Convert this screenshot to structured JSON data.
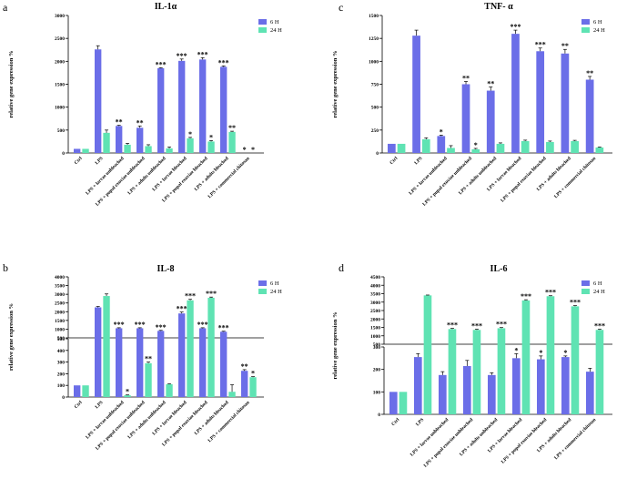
{
  "chart_data": [
    {
      "panel": "a",
      "type": "bar",
      "title": "IL-1α",
      "ylabel": "relative gene expression %",
      "ylim": [
        0,
        3000
      ],
      "yticks": [
        0,
        500,
        1000,
        1500,
        2000,
        2500,
        3000
      ],
      "categories": [
        "Ctrl",
        "LPS",
        "LPS + larvae unbleached",
        "LPS + pupal exuviae unbleached",
        "LPS + adults unbleached",
        "LPS + larvae bleached",
        "LPS + pupal exuviae bleached",
        "LPS + adults bleached",
        "LPS + commercial chitosan"
      ],
      "series": [
        {
          "name": "6 H",
          "color": "#6b6ee8",
          "values": [
            90,
            2260,
            590,
            550,
            1850,
            2010,
            2040,
            1880,
            0
          ],
          "errors": [
            0,
            80,
            15,
            40,
            10,
            40,
            40,
            20,
            0
          ],
          "stars": [
            "",
            "",
            "**",
            "**",
            "***",
            "***",
            "***",
            "***",
            "*"
          ]
        },
        {
          "name": "24 H",
          "color": "#5fe3b3",
          "values": [
            90,
            440,
            180,
            150,
            100,
            320,
            250,
            460,
            0
          ],
          "errors": [
            0,
            60,
            30,
            30,
            30,
            20,
            20,
            15,
            0
          ],
          "stars": [
            "",
            "",
            "",
            "",
            "",
            "*",
            "*",
            "**",
            "*"
          ]
        }
      ]
    },
    {
      "panel": "c",
      "type": "bar",
      "title": "TNF- α",
      "ylabel": "relative gene expression %",
      "ylim": [
        0,
        1500
      ],
      "yticks": [
        0,
        250,
        500,
        750,
        1000,
        1250,
        1500
      ],
      "categories": [
        "Ctrl",
        "LPS",
        "LPS + larvae unbleached",
        "LPS + pupal exuviae unbleached",
        "LPS + adults unbleached",
        "LPS + larvae bleached",
        "LPS + pupal exuviae bleached",
        "LPS + adults bleached",
        "LPS + commercial chitosan"
      ],
      "series": [
        {
          "name": "6 H",
          "color": "#6b6ee8",
          "values": [
            100,
            1280,
            185,
            750,
            680,
            1300,
            1110,
            1085,
            800
          ],
          "errors": [
            0,
            60,
            10,
            30,
            40,
            40,
            35,
            45,
            35
          ],
          "stars": [
            "",
            "",
            "*",
            "**",
            "**",
            "***",
            "***",
            "**",
            "**"
          ]
        },
        {
          "name": "24 H",
          "color": "#5fe3b3",
          "values": [
            100,
            150,
            55,
            40,
            100,
            130,
            120,
            130,
            60
          ],
          "errors": [
            0,
            15,
            25,
            10,
            10,
            10,
            10,
            8,
            5
          ],
          "stars": [
            "",
            "",
            "",
            "*",
            "",
            "",
            "",
            "",
            ""
          ]
        }
      ]
    },
    {
      "panel": "b",
      "type": "bar",
      "title": "IL-8",
      "ylabel": "relative gene expression %",
      "ylim": [
        0,
        4000
      ],
      "axis_break": {
        "lower_max": 500,
        "upper_min": 500
      },
      "yticks_lower": [
        0,
        100,
        200,
        300,
        400,
        500
      ],
      "yticks_upper": [
        500,
        1000,
        1500,
        2000,
        2500,
        3000,
        3500,
        4000
      ],
      "categories": [
        "Ctrl",
        "LPS",
        "LPS + larvae unbleached",
        "LPS + pupal exuviae unbleached",
        "LPS + adults unbleached",
        "LPS + larvae bleached",
        "LPS + pupal exuviae bleached",
        "LPS + adults bleached",
        "LPS + commercial chitosan"
      ],
      "series": [
        {
          "name": "6 H",
          "color": "#6b6ee8",
          "values": [
            100,
            2250,
            1050,
            1050,
            900,
            1900,
            1050,
            850,
            225
          ],
          "errors": [
            0,
            50,
            30,
            30,
            30,
            80,
            30,
            30,
            10
          ],
          "stars": [
            "",
            "",
            "***",
            "***",
            "***",
            "***",
            "***",
            "***",
            "**"
          ]
        },
        {
          "name": "24 H",
          "color": "#5fe3b3",
          "values": [
            100,
            2900,
            15,
            290,
            110,
            2650,
            2800,
            45,
            170
          ],
          "errors": [
            0,
            120,
            3,
            10,
            5,
            60,
            40,
            60,
            5
          ],
          "stars": [
            "",
            "",
            "*",
            "**",
            "",
            "***",
            "***",
            "",
            "*"
          ]
        }
      ]
    },
    {
      "panel": "d",
      "type": "bar",
      "title": "IL-6",
      "ylabel": "relative gene expression %",
      "ylim": [
        0,
        4500
      ],
      "axis_break": {
        "lower_max": 300,
        "upper_min": 500
      },
      "yticks_lower": [
        0,
        100,
        200,
        300
      ],
      "yticks_upper": [
        500,
        1000,
        1500,
        2000,
        2500,
        3000,
        3500,
        4000,
        4500
      ],
      "categories": [
        "Ctrl",
        "LPS",
        "LPS + larvae unbleached",
        "LPS + pupal exuviae unbleached",
        "LPS + adults unbleached",
        "LPS + larvae bleached",
        "LPS + pupal exuviae bleached",
        "LPS + adults bleached",
        "LPS + commercial chitosan"
      ],
      "series": [
        {
          "name": "6 H",
          "color": "#6b6ee8",
          "values": [
            100,
            255,
            175,
            215,
            175,
            250,
            245,
            255,
            190
          ],
          "errors": [
            0,
            15,
            15,
            25,
            10,
            20,
            15,
            5,
            15
          ],
          "stars": [
            "",
            "",
            "",
            "",
            "",
            "*",
            "*",
            "*",
            ""
          ]
        },
        {
          "name": "24 H",
          "color": "#5fe3b3",
          "values": [
            100,
            3400,
            1400,
            1350,
            1450,
            3100,
            3350,
            2750,
            1350
          ],
          "errors": [
            0,
            20,
            40,
            40,
            40,
            40,
            30,
            40,
            40
          ],
          "stars": [
            "",
            "",
            "***",
            "***",
            "***",
            "***",
            "***",
            "***",
            "***"
          ]
        }
      ]
    }
  ]
}
